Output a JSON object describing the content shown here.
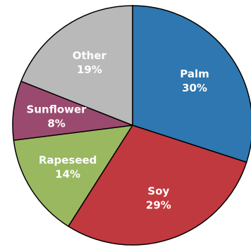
{
  "chart_data": {
    "type": "pie",
    "title": "",
    "start_angle_deg": 0,
    "direction": "clockwise",
    "slices": [
      {
        "name": "Palm",
        "label": "Palm",
        "value": 30,
        "value_label": "30%",
        "color": "#2e77b0"
      },
      {
        "name": "Soy",
        "label": "Soy",
        "value": 29,
        "value_label": "29%",
        "color": "#c0393f"
      },
      {
        "name": "Rapeseed",
        "label": "Rapeseed",
        "value": 14,
        "value_label": "14%",
        "color": "#99b860"
      },
      {
        "name": "Sunflower",
        "label": "Sunflower",
        "value": 8,
        "value_label": "8%",
        "color": "#9a4a6e"
      },
      {
        "name": "Other",
        "label": "Other",
        "value": 19,
        "value_label": "19%",
        "color": "#b9b9b9"
      }
    ]
  }
}
